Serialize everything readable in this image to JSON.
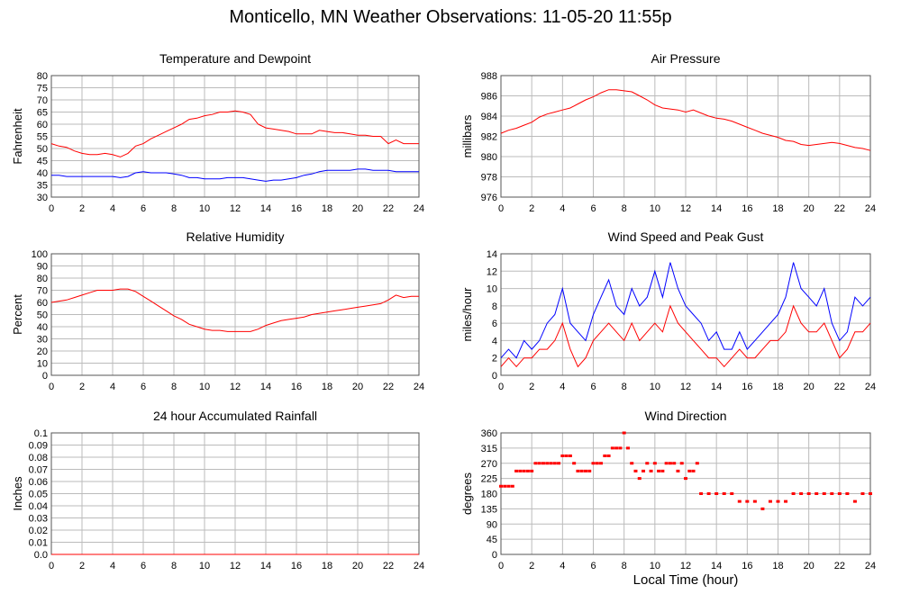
{
  "page": {
    "title": "Monticello, MN Weather Observations: 11-05-20 11:55p",
    "xlabel": "Local Time (hour)"
  },
  "chart_data": [
    {
      "type": "line",
      "title": "Temperature and Dewpoint",
      "ylabel": "Fahrenheit",
      "xlim": [
        0,
        24
      ],
      "ylim": [
        30,
        80
      ],
      "x_ticks": [
        0,
        2,
        4,
        6,
        8,
        10,
        12,
        14,
        16,
        18,
        20,
        22,
        24
      ],
      "y_ticks": [
        30,
        35,
        40,
        45,
        50,
        55,
        60,
        65,
        70,
        75,
        80
      ],
      "grid": true,
      "series": [
        {
          "color": "#ff0000",
          "x": [
            0,
            0.5,
            1,
            1.5,
            2,
            2.5,
            3,
            3.5,
            4,
            4.5,
            5,
            5.5,
            6,
            6.5,
            7,
            7.5,
            8,
            8.5,
            9,
            9.5,
            10,
            10.5,
            11,
            11.5,
            12,
            12.5,
            13,
            13.5,
            14,
            14.5,
            15,
            15.5,
            16,
            16.5,
            17,
            17.5,
            18,
            18.5,
            19,
            19.5,
            20,
            20.5,
            21,
            21.5,
            22,
            22.5,
            23,
            23.5,
            24
          ],
          "y": [
            52,
            51,
            50.5,
            49,
            48,
            47.5,
            47.5,
            48,
            47.5,
            46.5,
            48,
            51,
            52,
            54,
            55.5,
            57,
            58.5,
            60,
            62,
            62.5,
            63.5,
            64,
            65,
            65,
            65.5,
            65,
            64,
            60,
            58.5,
            58,
            57.5,
            57,
            56,
            56,
            56,
            57.5,
            57,
            56.5,
            56.5,
            56,
            55.5,
            55.5,
            55,
            55,
            52,
            53.5,
            52,
            52,
            52
          ]
        },
        {
          "color": "#0000ff",
          "x": [
            0,
            0.5,
            1,
            1.5,
            2,
            2.5,
            3,
            3.5,
            4,
            4.5,
            5,
            5.5,
            6,
            6.5,
            7,
            7.5,
            8,
            8.5,
            9,
            9.5,
            10,
            10.5,
            11,
            11.5,
            12,
            12.5,
            13,
            13.5,
            14,
            14.5,
            15,
            15.5,
            16,
            16.5,
            17,
            17.5,
            18,
            18.5,
            19,
            19.5,
            20,
            20.5,
            21,
            21.5,
            22,
            22.5,
            23,
            23.5,
            24
          ],
          "y": [
            39,
            39,
            38.5,
            38.5,
            38.5,
            38.5,
            38.5,
            38.5,
            38.5,
            38,
            38.5,
            40,
            40.5,
            40,
            40,
            40,
            39.5,
            39,
            38,
            38,
            37.5,
            37.5,
            37.5,
            38,
            38,
            38,
            37.5,
            37,
            36.5,
            37,
            37,
            37.5,
            38,
            39,
            39.5,
            40.5,
            41,
            41,
            41,
            41,
            41.5,
            41.5,
            41,
            41,
            41,
            40.5,
            40.5,
            40.5,
            40.5
          ]
        }
      ]
    },
    {
      "type": "line",
      "title": "Air Pressure",
      "ylabel": "millibars",
      "xlim": [
        0,
        24
      ],
      "ylim": [
        976,
        988
      ],
      "x_ticks": [
        0,
        2,
        4,
        6,
        8,
        10,
        12,
        14,
        16,
        18,
        20,
        22,
        24
      ],
      "y_ticks": [
        976,
        978,
        980,
        982,
        984,
        986,
        988
      ],
      "grid": true,
      "series": [
        {
          "color": "#ff0000",
          "x": [
            0,
            0.5,
            1,
            1.5,
            2,
            2.5,
            3,
            3.5,
            4,
            4.5,
            5,
            5.5,
            6,
            6.5,
            7,
            7.5,
            8,
            8.5,
            9,
            9.5,
            10,
            10.5,
            11,
            11.5,
            12,
            12.5,
            13,
            13.5,
            14,
            14.5,
            15,
            15.5,
            16,
            16.5,
            17,
            17.5,
            18,
            18.5,
            19,
            19.5,
            20,
            20.5,
            21,
            21.5,
            22,
            22.5,
            23,
            23.5,
            24
          ],
          "y": [
            982.3,
            982.6,
            982.8,
            983.1,
            983.4,
            983.9,
            984.2,
            984.4,
            984.6,
            984.8,
            985.2,
            985.6,
            985.9,
            986.3,
            986.6,
            986.6,
            986.5,
            986.4,
            986,
            985.6,
            985.1,
            984.8,
            984.7,
            984.6,
            984.4,
            984.6,
            984.3,
            984,
            983.8,
            983.7,
            983.5,
            983.2,
            982.9,
            982.6,
            982.3,
            982.1,
            981.9,
            981.6,
            981.5,
            981.2,
            981.1,
            981.2,
            981.3,
            981.4,
            981.3,
            981.1,
            980.9,
            980.8,
            980.6
          ]
        }
      ]
    },
    {
      "type": "line",
      "title": "Relative Humidity",
      "ylabel": "Percent",
      "xlim": [
        0,
        24
      ],
      "ylim": [
        0,
        100
      ],
      "x_ticks": [
        0,
        2,
        4,
        6,
        8,
        10,
        12,
        14,
        16,
        18,
        20,
        22,
        24
      ],
      "y_ticks": [
        0,
        10,
        20,
        30,
        40,
        50,
        60,
        70,
        80,
        90,
        100
      ],
      "grid": true,
      "series": [
        {
          "color": "#ff0000",
          "x": [
            0,
            0.5,
            1,
            1.5,
            2,
            2.5,
            3,
            3.5,
            4,
            4.5,
            5,
            5.5,
            6,
            6.5,
            7,
            7.5,
            8,
            8.5,
            9,
            9.5,
            10,
            10.5,
            11,
            11.5,
            12,
            12.5,
            13,
            13.5,
            14,
            14.5,
            15,
            15.5,
            16,
            16.5,
            17,
            17.5,
            18,
            18.5,
            19,
            19.5,
            20,
            20.5,
            21,
            21.5,
            22,
            22.5,
            23,
            23.5,
            24
          ],
          "y": [
            60,
            61,
            62,
            64,
            66,
            68,
            70,
            70,
            70,
            71,
            71,
            69,
            65,
            61,
            57,
            53,
            49,
            46,
            42,
            40,
            38,
            37,
            37,
            36,
            36,
            36,
            36,
            38,
            41,
            43,
            45,
            46,
            47,
            48,
            50,
            51,
            52,
            53,
            54,
            55,
            56,
            57,
            58,
            59,
            62,
            66,
            64,
            65,
            65
          ]
        }
      ]
    },
    {
      "type": "line",
      "title": "Wind Speed and Peak Gust",
      "ylabel": "miles/hour",
      "xlim": [
        0,
        24
      ],
      "ylim": [
        0,
        14
      ],
      "x_ticks": [
        0,
        2,
        4,
        6,
        8,
        10,
        12,
        14,
        16,
        18,
        20,
        22,
        24
      ],
      "y_ticks": [
        0,
        2,
        4,
        6,
        8,
        10,
        12,
        14
      ],
      "grid": true,
      "series": [
        {
          "color": "#0000ff",
          "x": [
            0,
            0.5,
            1,
            1.5,
            2,
            2.5,
            3,
            3.5,
            4,
            4.5,
            5,
            5.5,
            6,
            6.5,
            7,
            7.5,
            8,
            8.5,
            9,
            9.5,
            10,
            10.5,
            11,
            11.5,
            12,
            12.5,
            13,
            13.5,
            14,
            14.5,
            15,
            15.5,
            16,
            16.5,
            17,
            17.5,
            18,
            18.5,
            19,
            19.5,
            20,
            20.5,
            21,
            21.5,
            22,
            22.5,
            23,
            23.5,
            24
          ],
          "y": [
            2,
            3,
            2,
            4,
            3,
            4,
            6,
            7,
            10,
            6,
            5,
            4,
            7,
            9,
            11,
            8,
            7,
            10,
            8,
            9,
            12,
            9,
            13,
            10,
            8,
            7,
            6,
            4,
            5,
            3,
            3,
            5,
            3,
            4,
            5,
            6,
            7,
            9,
            13,
            10,
            9,
            8,
            10,
            6,
            4,
            5,
            9,
            8,
            9
          ]
        },
        {
          "color": "#ff0000",
          "x": [
            0,
            0.5,
            1,
            1.5,
            2,
            2.5,
            3,
            3.5,
            4,
            4.5,
            5,
            5.5,
            6,
            6.5,
            7,
            7.5,
            8,
            8.5,
            9,
            9.5,
            10,
            10.5,
            11,
            11.5,
            12,
            12.5,
            13,
            13.5,
            14,
            14.5,
            15,
            15.5,
            16,
            16.5,
            17,
            17.5,
            18,
            18.5,
            19,
            19.5,
            20,
            20.5,
            21,
            21.5,
            22,
            22.5,
            23,
            23.5,
            24
          ],
          "y": [
            1,
            2,
            1,
            2,
            2,
            3,
            3,
            4,
            6,
            3,
            1,
            2,
            4,
            5,
            6,
            5,
            4,
            6,
            4,
            5,
            6,
            5,
            8,
            6,
            5,
            4,
            3,
            2,
            2,
            1,
            2,
            3,
            2,
            2,
            3,
            4,
            4,
            5,
            8,
            6,
            5,
            5,
            6,
            4,
            2,
            3,
            5,
            5,
            6
          ]
        }
      ]
    },
    {
      "type": "line",
      "title": "24 hour Accumulated Rainfall",
      "ylabel": "Inches",
      "xlim": [
        0,
        24
      ],
      "ylim": [
        0,
        0.1
      ],
      "x_ticks": [
        0,
        2,
        4,
        6,
        8,
        10,
        12,
        14,
        16,
        18,
        20,
        22,
        24
      ],
      "y_ticks": [
        "0.0",
        "0.01",
        "0.02",
        "0.03",
        "0.04",
        "0.05",
        "0.06",
        "0.07",
        "0.08",
        "0.09",
        "0.1"
      ],
      "grid": true,
      "series": [
        {
          "color": "#ff0000",
          "x": [
            0,
            24
          ],
          "y": [
            0,
            0
          ]
        }
      ]
    },
    {
      "type": "scatter",
      "title": "Wind Direction",
      "ylabel": "degrees",
      "xlim": [
        0,
        24
      ],
      "ylim": [
        0,
        360
      ],
      "x_ticks": [
        0,
        2,
        4,
        6,
        8,
        10,
        12,
        14,
        16,
        18,
        20,
        22,
        24
      ],
      "y_ticks": [
        0,
        45,
        90,
        135,
        180,
        225,
        270,
        315,
        360
      ],
      "grid": true,
      "series": [
        {
          "color": "#ff0000",
          "x": [
            0,
            0.25,
            0.5,
            0.75,
            1,
            1.25,
            1.5,
            1.75,
            2,
            2.25,
            2.5,
            2.75,
            3,
            3.25,
            3.5,
            3.75,
            4,
            4.25,
            4.5,
            4.75,
            5,
            5.25,
            5.5,
            5.75,
            6,
            6.25,
            6.5,
            6.75,
            7,
            7.25,
            7.5,
            7.75,
            8,
            8.25,
            8.5,
            8.75,
            9,
            9.25,
            9.5,
            9.75,
            10,
            10.25,
            10.5,
            10.75,
            11,
            11.25,
            11.5,
            11.75,
            12,
            12.25,
            12.5,
            12.75,
            13,
            13.5,
            14,
            14.5,
            15,
            15.5,
            16,
            16.5,
            17,
            17.5,
            18,
            18.5,
            19,
            19.5,
            20,
            20.5,
            21,
            21.5,
            22,
            22.5,
            23,
            23.5,
            24
          ],
          "y": [
            202,
            202,
            202,
            202,
            247,
            247,
            247,
            247,
            247,
            270,
            270,
            270,
            270,
            270,
            270,
            270,
            292,
            292,
            292,
            270,
            247,
            247,
            247,
            247,
            270,
            270,
            270,
            292,
            292,
            315,
            315,
            315,
            360,
            315,
            270,
            247,
            225,
            247,
            270,
            247,
            270,
            247,
            247,
            270,
            270,
            270,
            247,
            270,
            225,
            247,
            247,
            270,
            180,
            180,
            180,
            180,
            180,
            157,
            157,
            157,
            135,
            157,
            157,
            157,
            180,
            180,
            180,
            180,
            180,
            180,
            180,
            180,
            157,
            180,
            180
          ]
        }
      ]
    }
  ]
}
